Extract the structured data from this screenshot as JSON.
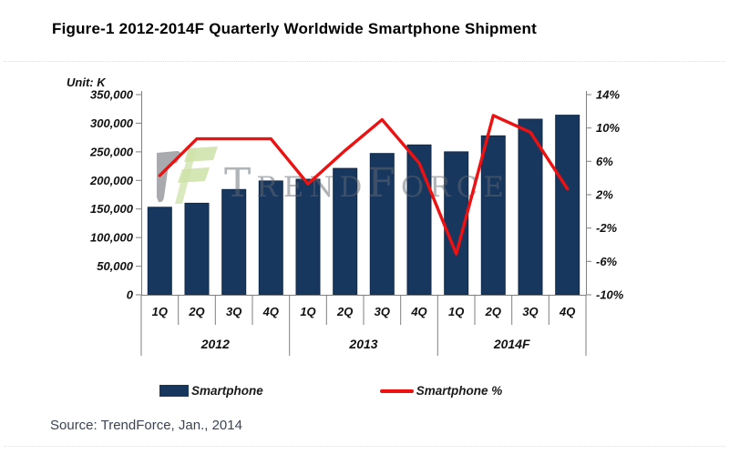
{
  "figure": {
    "title": "Figure-1 2012-2014F Quarterly Worldwide Smartphone Shipment",
    "unit_label": "Unit: K",
    "source_note": "Source: TrendForce, Jan., 2014",
    "watermark_text": "TrendForce"
  },
  "legend": {
    "items": [
      {
        "label": "Smartphone",
        "marker": "bar-swatch",
        "color": "#17375e"
      },
      {
        "label": "Smartphone %",
        "marker": "line-swatch",
        "color": "#ee1111"
      }
    ]
  },
  "chart_data": {
    "type": "combo",
    "categories": [
      "1Q",
      "2Q",
      "3Q",
      "4Q",
      "1Q",
      "2Q",
      "3Q",
      "4Q",
      "1Q",
      "2Q",
      "3Q",
      "4Q"
    ],
    "year_groups": [
      {
        "label": "2012",
        "span": 4
      },
      {
        "label": "2013",
        "span": 4
      },
      {
        "label": "2014F",
        "span": 4
      }
    ],
    "series": [
      {
        "name": "Smartphone",
        "type": "bar",
        "axis": "left",
        "color": "#17375e",
        "values": [
          153000,
          160000,
          184000,
          199000,
          202000,
          221000,
          247000,
          262000,
          250000,
          278000,
          307000,
          314000
        ]
      },
      {
        "name": "Smartphone %",
        "type": "line",
        "axis": "right",
        "color": "#ee1111",
        "values": [
          4.3,
          8.7,
          8.7,
          8.7,
          3.3,
          7.3,
          11.0,
          5.8,
          -5.1,
          11.5,
          9.5,
          2.7
        ]
      }
    ],
    "left_axis": {
      "title": "Unit: K",
      "min": 0,
      "max": 350000,
      "step": 50000,
      "tick_labels": [
        "350,000",
        "300,000",
        "250,000",
        "200,000",
        "150,000",
        "100,000",
        "50,000",
        "0"
      ]
    },
    "right_axis": {
      "min": -10,
      "max": 14,
      "step": 4,
      "tick_labels": [
        "14%",
        "10%",
        "6%",
        "2%",
        "-2%",
        "-6%",
        "-10%"
      ]
    },
    "grid": false,
    "legend_position": "bottom"
  }
}
